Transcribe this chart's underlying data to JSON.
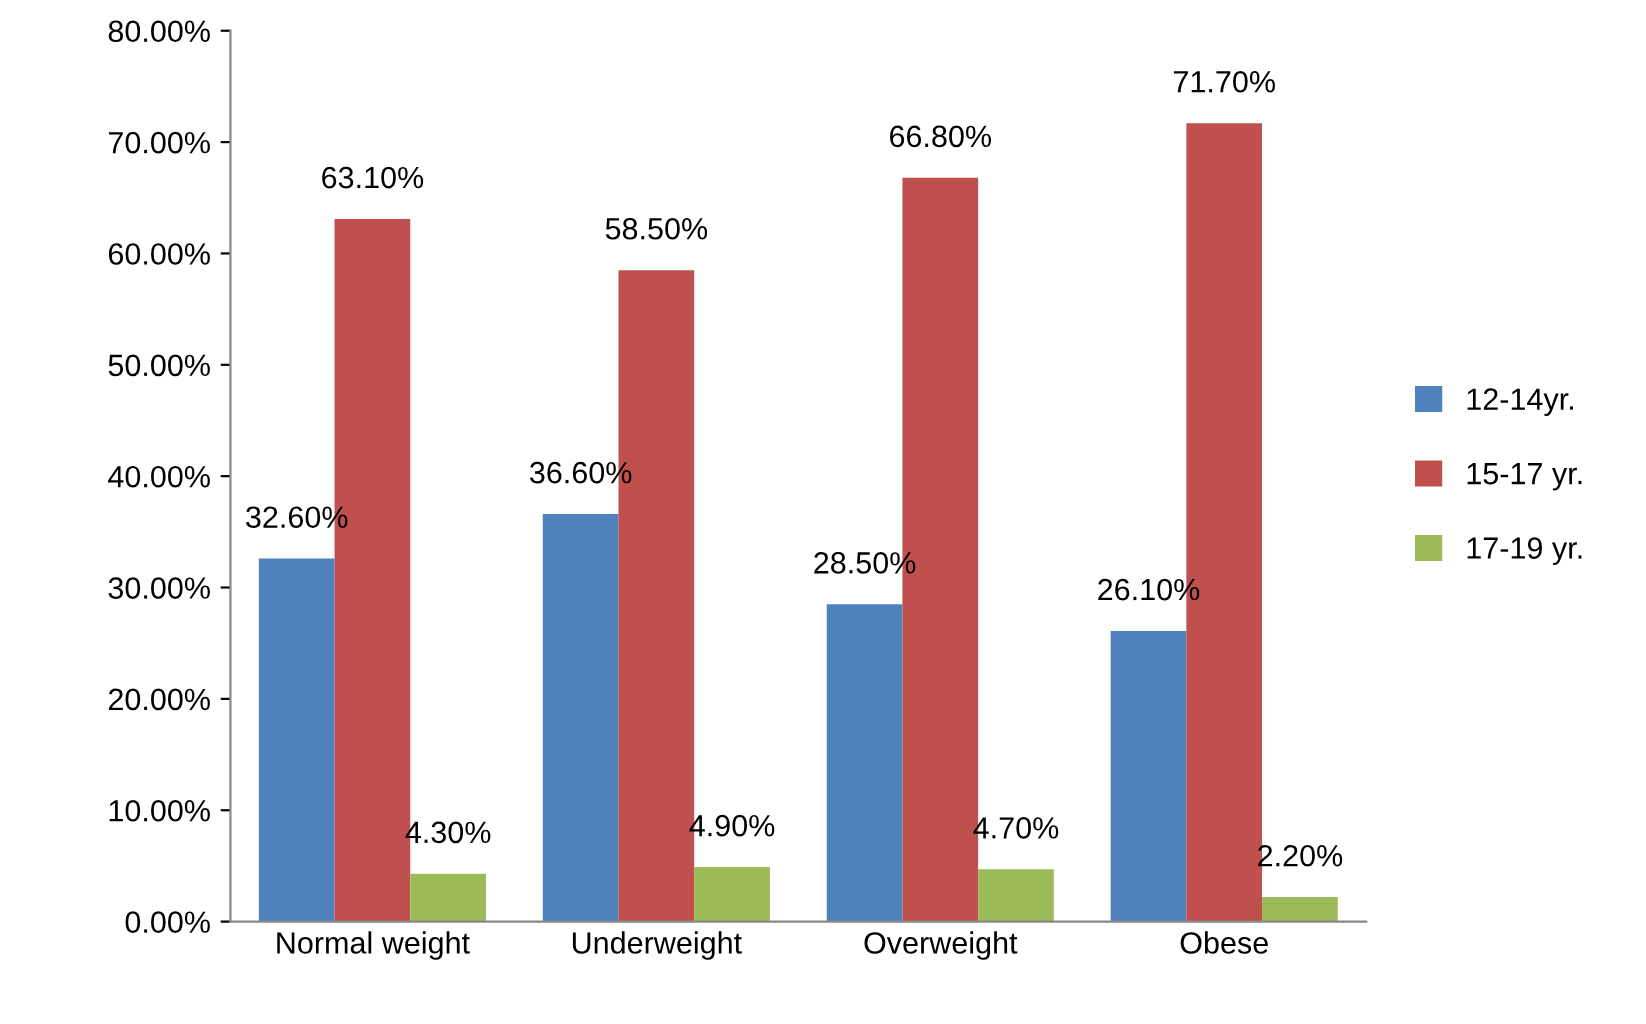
{
  "chart_data": {
    "type": "bar",
    "categories": [
      "Normal weight",
      "Underweight",
      "Overweight",
      "Obese"
    ],
    "series": [
      {
        "name": "12-14yr.",
        "color": "#4f81bd",
        "values": [
          32.6,
          36.6,
          28.5,
          26.1
        ],
        "value_labels": [
          "32.60%",
          "36.60%",
          "28.50%",
          "26.10%"
        ]
      },
      {
        "name": "15-17 yr.",
        "color": "#c0504d",
        "values": [
          63.1,
          58.5,
          66.8,
          71.7
        ],
        "value_labels": [
          "63.10%",
          "58.50%",
          "66.80%",
          "71.70%"
        ]
      },
      {
        "name": "17-19 yr.",
        "color": "#9bbb59",
        "values": [
          4.3,
          4.9,
          4.7,
          2.2
        ],
        "value_labels": [
          "4.30%",
          "4.90%",
          "4.70%",
          "2.20%"
        ]
      }
    ],
    "ylim": [
      0,
      80
    ],
    "yticks": [
      {
        "value": 0,
        "label": "0.00%"
      },
      {
        "value": 10,
        "label": "10.00%"
      },
      {
        "value": 20,
        "label": "20.00%"
      },
      {
        "value": 30,
        "label": "30.00%"
      },
      {
        "value": 40,
        "label": "40.00%"
      },
      {
        "value": 50,
        "label": "50.00%"
      },
      {
        "value": 60,
        "label": "60.00%"
      },
      {
        "value": 70,
        "label": "70.00%"
      },
      {
        "value": 80,
        "label": "80.00%"
      }
    ],
    "grid": false,
    "legend": "right"
  }
}
